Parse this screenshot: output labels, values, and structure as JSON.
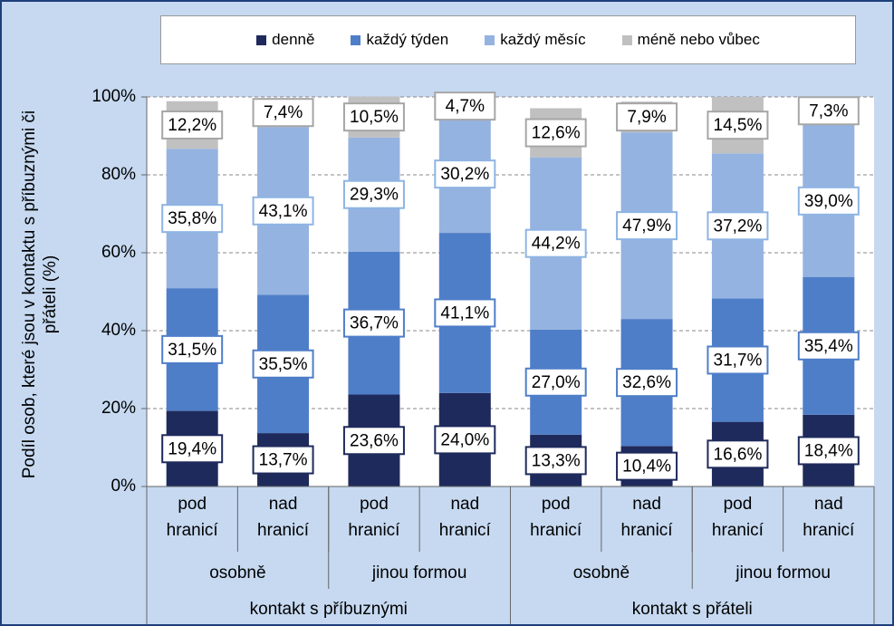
{
  "chart_data": {
    "type": "stacked_bar",
    "y_label": "Podíl osob, které jsou v kontaktu s příbuznými či přáteli (%)",
    "categories": [
      "pod hranicí",
      "nad hranicí",
      "pod hranicí",
      "nad hranicí",
      "pod hranicí",
      "nad hranicí",
      "pod hranicí",
      "nad hranicí"
    ],
    "category_levels": [
      [
        "osobně",
        "jinou formou",
        "osobně",
        "jinou formou"
      ],
      [
        "kontakt s příbuznými",
        "kontakt s přáteli"
      ]
    ],
    "series": [
      {
        "name": "denně",
        "color": "#1f2a5c",
        "values": [
          19.4,
          13.7,
          23.6,
          24.0,
          13.3,
          10.4,
          16.6,
          18.4
        ],
        "value_labels": [
          "19,4%",
          "13,7%",
          "23,6%",
          "24,0%",
          "13,3%",
          "10,4%",
          "16,6%",
          "18,4%"
        ]
      },
      {
        "name": "každý týden",
        "color": "#4f7ec8",
        "values": [
          31.5,
          35.5,
          36.7,
          41.1,
          27.0,
          32.6,
          31.7,
          35.4
        ],
        "value_labels": [
          "31,5%",
          "35,5%",
          "36,7%",
          "41,1%",
          "27,0%",
          "32,6%",
          "31,7%",
          "35,4%"
        ]
      },
      {
        "name": "každý měsíc",
        "color": "#95b3e0",
        "values": [
          35.8,
          43.1,
          29.3,
          30.2,
          44.2,
          47.9,
          37.2,
          39.0
        ],
        "value_labels": [
          "35,8%",
          "43,1%",
          "29,3%",
          "30,2%",
          "44,2%",
          "47,9%",
          "37,2%",
          "39,0%"
        ]
      },
      {
        "name": "méně nebo vůbec",
        "color": "#c0c0c0",
        "values": [
          12.2,
          7.4,
          10.5,
          4.7,
          12.6,
          7.9,
          14.5,
          7.3
        ],
        "value_labels": [
          "12,2%",
          "7,4%",
          "10,5%",
          "4,7%",
          "12,6%",
          "7,9%",
          "14,5%",
          "7,3%"
        ]
      }
    ],
    "ylim": [
      0,
      100
    ],
    "yticks": [
      {
        "value": 0,
        "label": "0%"
      },
      {
        "value": 20,
        "label": "20%"
      },
      {
        "value": 40,
        "label": "40%"
      },
      {
        "value": 60,
        "label": "60%"
      },
      {
        "value": 80,
        "label": "80%"
      },
      {
        "value": 100,
        "label": "100%"
      }
    ],
    "grid": true,
    "legend": "top"
  }
}
